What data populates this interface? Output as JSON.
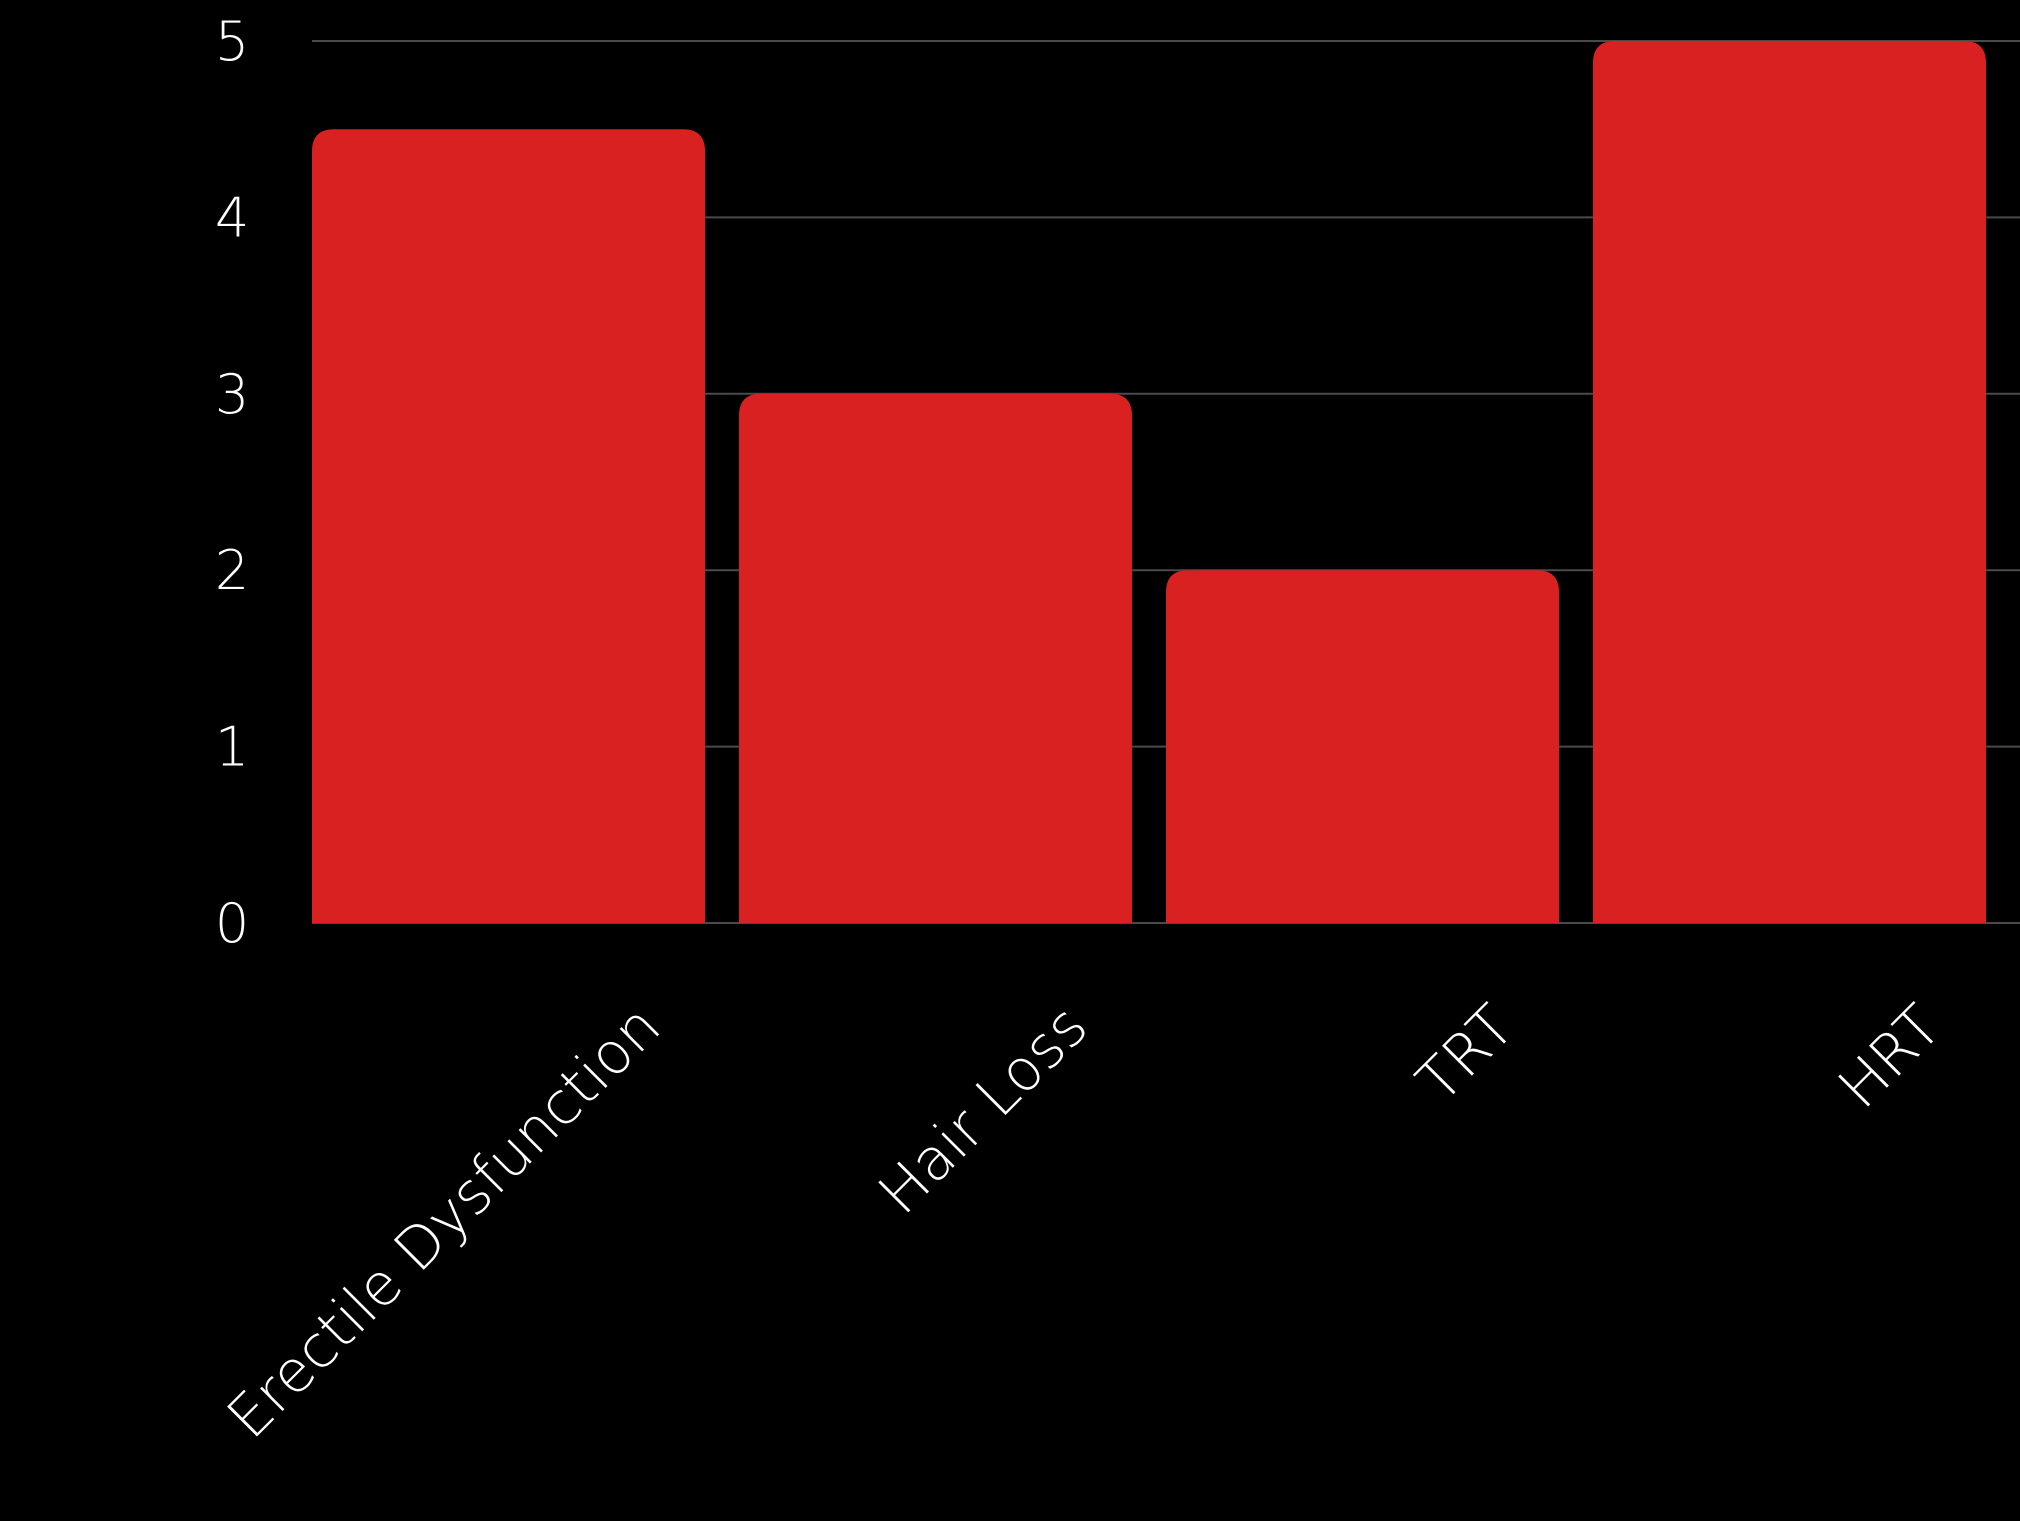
{
  "chart_data": {
    "type": "bar",
    "categories": [
      "Erectile Dysfunction",
      "Hair Loss",
      "TRT",
      "HRT"
    ],
    "values": [
      4.5,
      3,
      2,
      5
    ],
    "title": "",
    "xlabel": "",
    "ylabel": "",
    "ylim": [
      0,
      5
    ],
    "yticks": [
      "0",
      "1",
      "2",
      "3",
      "4",
      "5"
    ],
    "grid": true,
    "legend": "none",
    "colors": {
      "background": "#000000",
      "bar": "#d92121",
      "grid": "#4a4a4a",
      "text": "#ffffff"
    }
  }
}
